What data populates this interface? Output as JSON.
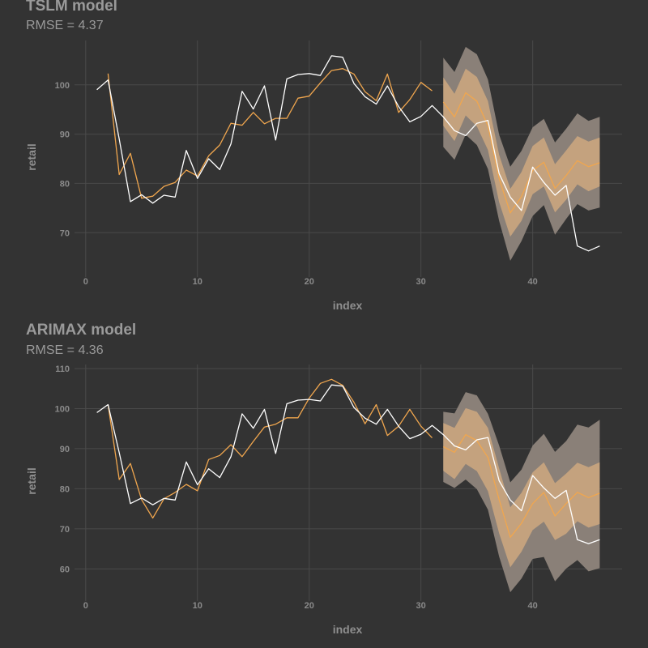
{
  "colors": {
    "background": "#333333",
    "grid": "#4a4a4a",
    "actual": "#ffffff",
    "fitted": "#f0a64e",
    "band_outer": "#8a8078",
    "band_inner": "#c4a27e"
  },
  "chart_data": [
    {
      "type": "line",
      "title": "TSLM model",
      "subtitle": "RMSE = 4.37",
      "xlabel": "index",
      "ylabel": "retail",
      "xlim": [
        -1,
        48
      ],
      "ylim": [
        61,
        109
      ],
      "xticks": [
        0,
        10,
        20,
        30,
        40
      ],
      "yticks": [
        70,
        80,
        90,
        100
      ],
      "grid": true,
      "series": [
        {
          "role": "actual",
          "x": [
            1,
            2,
            3,
            4,
            5,
            6,
            7,
            8,
            9,
            10,
            11,
            12,
            13,
            14,
            15,
            16,
            17,
            18,
            19,
            20,
            21,
            22,
            23,
            24,
            25,
            26,
            27,
            28,
            29,
            30,
            31,
            32,
            33,
            34,
            35,
            36,
            37,
            38,
            39,
            40,
            41,
            42,
            43,
            44,
            45,
            46
          ],
          "values": [
            99,
            101,
            89,
            76.3,
            77.7,
            76,
            77.6,
            77.2,
            86.7,
            81,
            85,
            82.8,
            88,
            98.7,
            95.1,
            99.8,
            88.8,
            101.2,
            102.1,
            102.3,
            101.9,
            105.9,
            105.6,
            100.3,
            97.6,
            96.1,
            99.8,
            95.6,
            92.5,
            93.6,
            95.8,
            93.5,
            90.7,
            89.7,
            92.2,
            92.8,
            82,
            77.2,
            74.5,
            83.3,
            80.2,
            77.6,
            79.6,
            67.3,
            66.3,
            67.3
          ]
        },
        {
          "role": "fitted",
          "x": [
            2,
            3,
            4,
            5,
            6,
            7,
            8,
            9,
            10,
            11,
            12,
            13,
            14,
            15,
            16,
            17,
            18,
            19,
            20,
            21,
            22,
            23,
            24,
            25,
            26,
            27,
            28,
            29,
            30,
            31
          ],
          "values": [
            102.3,
            81.8,
            86.1,
            77,
            77.4,
            79.4,
            80.2,
            82.7,
            81.5,
            85.6,
            87.8,
            92.2,
            91.8,
            94.4,
            92.1,
            93.2,
            93.2,
            97.3,
            97.7,
            100.4,
            102.9,
            103.3,
            102.2,
            98.6,
            96.8,
            102.2,
            94.4,
            97,
            100.5,
            98.8
          ]
        },
        {
          "role": "forecast",
          "x": [
            32,
            33,
            34,
            35,
            36,
            37,
            38,
            39,
            40,
            41,
            42,
            43,
            44,
            45,
            46
          ],
          "values": [
            96.5,
            93.5,
            98.4,
            96.7,
            91.7,
            81,
            74,
            77.3,
            82.6,
            84.3,
            79,
            81.6,
            84.6,
            83.4,
            84.2
          ],
          "inner_lower": [
            91.7,
            88.6,
            93.8,
            91.6,
            86.8,
            76.2,
            69.2,
            72.4,
            77.8,
            79.4,
            74.1,
            76.7,
            79.8,
            78.4,
            79.4
          ],
          "inner_upper": [
            101.5,
            98.2,
            103.3,
            101.6,
            96.7,
            85.8,
            78.9,
            82.3,
            87.6,
            89.3,
            83.9,
            86.7,
            89.6,
            88.5,
            89.3
          ],
          "outer_lower": [
            87.4,
            84.8,
            89.9,
            87.8,
            82.9,
            72.4,
            64.3,
            68.3,
            73.4,
            75.6,
            69.6,
            72.8,
            75.8,
            74.5,
            75.1
          ],
          "outer_upper": [
            105.5,
            102.6,
            107.7,
            106.2,
            101.1,
            89.9,
            83.4,
            86.6,
            91.4,
            93.1,
            88.3,
            91.1,
            94.2,
            92.7,
            93.5
          ]
        }
      ]
    },
    {
      "type": "line",
      "title": "ARIMAX model",
      "subtitle": "RMSE = 4.36",
      "xlabel": "index",
      "ylabel": "retail",
      "xlim": [
        -1,
        48
      ],
      "ylim": [
        52,
        111
      ],
      "xticks": [
        0,
        10,
        20,
        30,
        40
      ],
      "yticks": [
        60,
        70,
        80,
        90,
        100,
        110
      ],
      "grid": true,
      "series": [
        {
          "role": "actual",
          "x": [
            1,
            2,
            3,
            4,
            5,
            6,
            7,
            8,
            9,
            10,
            11,
            12,
            13,
            14,
            15,
            16,
            17,
            18,
            19,
            20,
            21,
            22,
            23,
            24,
            25,
            26,
            27,
            28,
            29,
            30,
            31,
            32,
            33,
            34,
            35,
            36,
            37,
            38,
            39,
            40,
            41,
            42,
            43,
            44,
            45,
            46
          ],
          "values": [
            99,
            101,
            89,
            76.3,
            77.7,
            76,
            77.6,
            77.2,
            86.7,
            81,
            85,
            82.8,
            88,
            98.7,
            95.1,
            99.8,
            88.8,
            101.2,
            102.1,
            102.3,
            101.9,
            105.9,
            105.6,
            100.3,
            97.6,
            96.1,
            99.8,
            95.6,
            92.5,
            93.6,
            95.8,
            93.5,
            90.7,
            89.7,
            92.2,
            92.8,
            82,
            77.2,
            74.5,
            83.3,
            80.2,
            77.6,
            79.6,
            67.3,
            66.3,
            67.3
          ]
        },
        {
          "role": "fitted",
          "x": [
            2,
            3,
            4,
            5,
            6,
            7,
            8,
            9,
            10,
            11,
            12,
            13,
            14,
            15,
            16,
            17,
            18,
            19,
            20,
            21,
            22,
            23,
            24,
            25,
            26,
            27,
            28,
            29,
            30,
            31
          ],
          "values": [
            101,
            82.3,
            86.3,
            77.3,
            72.7,
            77.5,
            79.1,
            81.1,
            79.5,
            87.3,
            88.3,
            91,
            88,
            91.8,
            95.4,
            96.1,
            97.7,
            97.7,
            102.6,
            106.3,
            107.3,
            105.8,
            101.6,
            96.2,
            101,
            93.3,
            95.6,
            99.8,
            95.6,
            92.7
          ]
        },
        {
          "role": "forecast",
          "x": [
            32,
            33,
            34,
            35,
            36,
            37,
            38,
            39,
            40,
            41,
            42,
            43,
            44,
            45,
            46
          ],
          "values": [
            90.5,
            89.1,
            93.5,
            92,
            87.8,
            77.3,
            67.9,
            71.4,
            76.3,
            79.1,
            73.2,
            76.3,
            79.1,
            77.8,
            78.9
          ],
          "inner_lower": [
            84.5,
            82.4,
            86.2,
            84.4,
            79.4,
            68.9,
            60.4,
            64.3,
            69.7,
            71.8,
            67.2,
            68.8,
            71.9,
            70.3,
            71.2
          ],
          "inner_upper": [
            96.4,
            95.2,
            100.1,
            99.2,
            95.2,
            85.1,
            75.4,
            79,
            84.1,
            86.6,
            81.4,
            83.8,
            86.5,
            85.4,
            86.6
          ],
          "outer_lower": [
            81.7,
            80.2,
            82.3,
            79.9,
            74.8,
            63.1,
            54.2,
            57.6,
            62.5,
            63,
            56.9,
            60.1,
            62.2,
            59.4,
            60.2
          ],
          "outer_upper": [
            99.2,
            98.8,
            104.1,
            103.3,
            98.7,
            90.8,
            81.6,
            84.8,
            90.8,
            93.7,
            89.2,
            91.9,
            96,
            95.3,
            97.2
          ]
        }
      ]
    }
  ]
}
